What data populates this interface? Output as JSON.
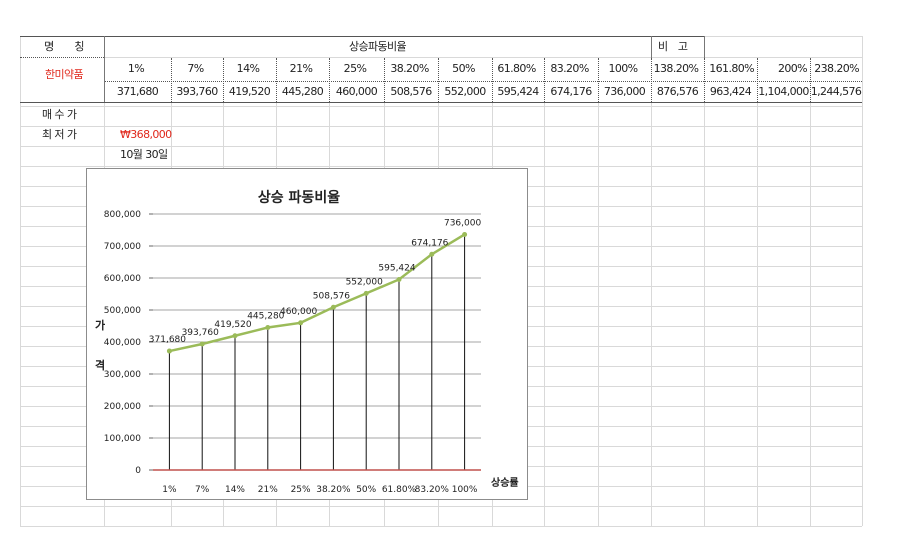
{
  "header": {
    "name_label": "명　　칭",
    "group_label": "상승파동비율",
    "note_label": "비　고",
    "company": "한미약품"
  },
  "columns": [
    {
      "pct": "1%",
      "price": "371,680"
    },
    {
      "pct": "7%",
      "price": "393,760"
    },
    {
      "pct": "14%",
      "price": "419,520"
    },
    {
      "pct": "21%",
      "price": "445,280"
    },
    {
      "pct": "25%",
      "price": "460,000"
    },
    {
      "pct": "38.20%",
      "price": "508,576"
    },
    {
      "pct": "50%",
      "price": "552,000"
    },
    {
      "pct": "61.80%",
      "price": "595,424"
    },
    {
      "pct": "83.20%",
      "price": "674,176"
    },
    {
      "pct": "100%",
      "price": "736,000"
    },
    {
      "pct": "138.20%",
      "price": "876,576"
    },
    {
      "pct": "161.80%",
      "price": "963,424"
    },
    {
      "pct": "200%",
      "price": "1,104,000"
    },
    {
      "pct": "238.20%",
      "price": "1,244,576"
    }
  ],
  "rows": {
    "buy_label": "매 수 가",
    "low_label": "최 저 가",
    "low_value": "₩368,000",
    "date_value": "10월 30일"
  },
  "colors": {
    "line": "#9bbb59",
    "red": "#e0281c",
    "baseline": "#c0504d"
  },
  "chart_data": {
    "type": "line",
    "title": "상승 파동비율",
    "ylabel": "가격",
    "xlabel": "상승률",
    "categories": [
      "1%",
      "7%",
      "14%",
      "21%",
      "25%",
      "38.20%",
      "50%",
      "61.80%",
      "83.20%",
      "100%"
    ],
    "values": [
      371680,
      393760,
      419520,
      445280,
      460000,
      508576,
      552000,
      595424,
      674176,
      736000
    ],
    "value_labels": [
      "371,680",
      "393,760",
      "419,520",
      "445,280",
      "460,000",
      "508,576",
      "552,000",
      "595,424",
      "674,176",
      "736,000"
    ],
    "ylim": [
      0,
      800000
    ],
    "yticks": [
      0,
      100000,
      200000,
      300000,
      400000,
      500000,
      600000,
      700000,
      800000
    ],
    "ytick_labels": [
      "0",
      "100,000",
      "200,000",
      "300,000",
      "400,000",
      "500,000",
      "600,000",
      "700,000",
      "800,000"
    ],
    "drop_lines": true,
    "legend": "none"
  }
}
